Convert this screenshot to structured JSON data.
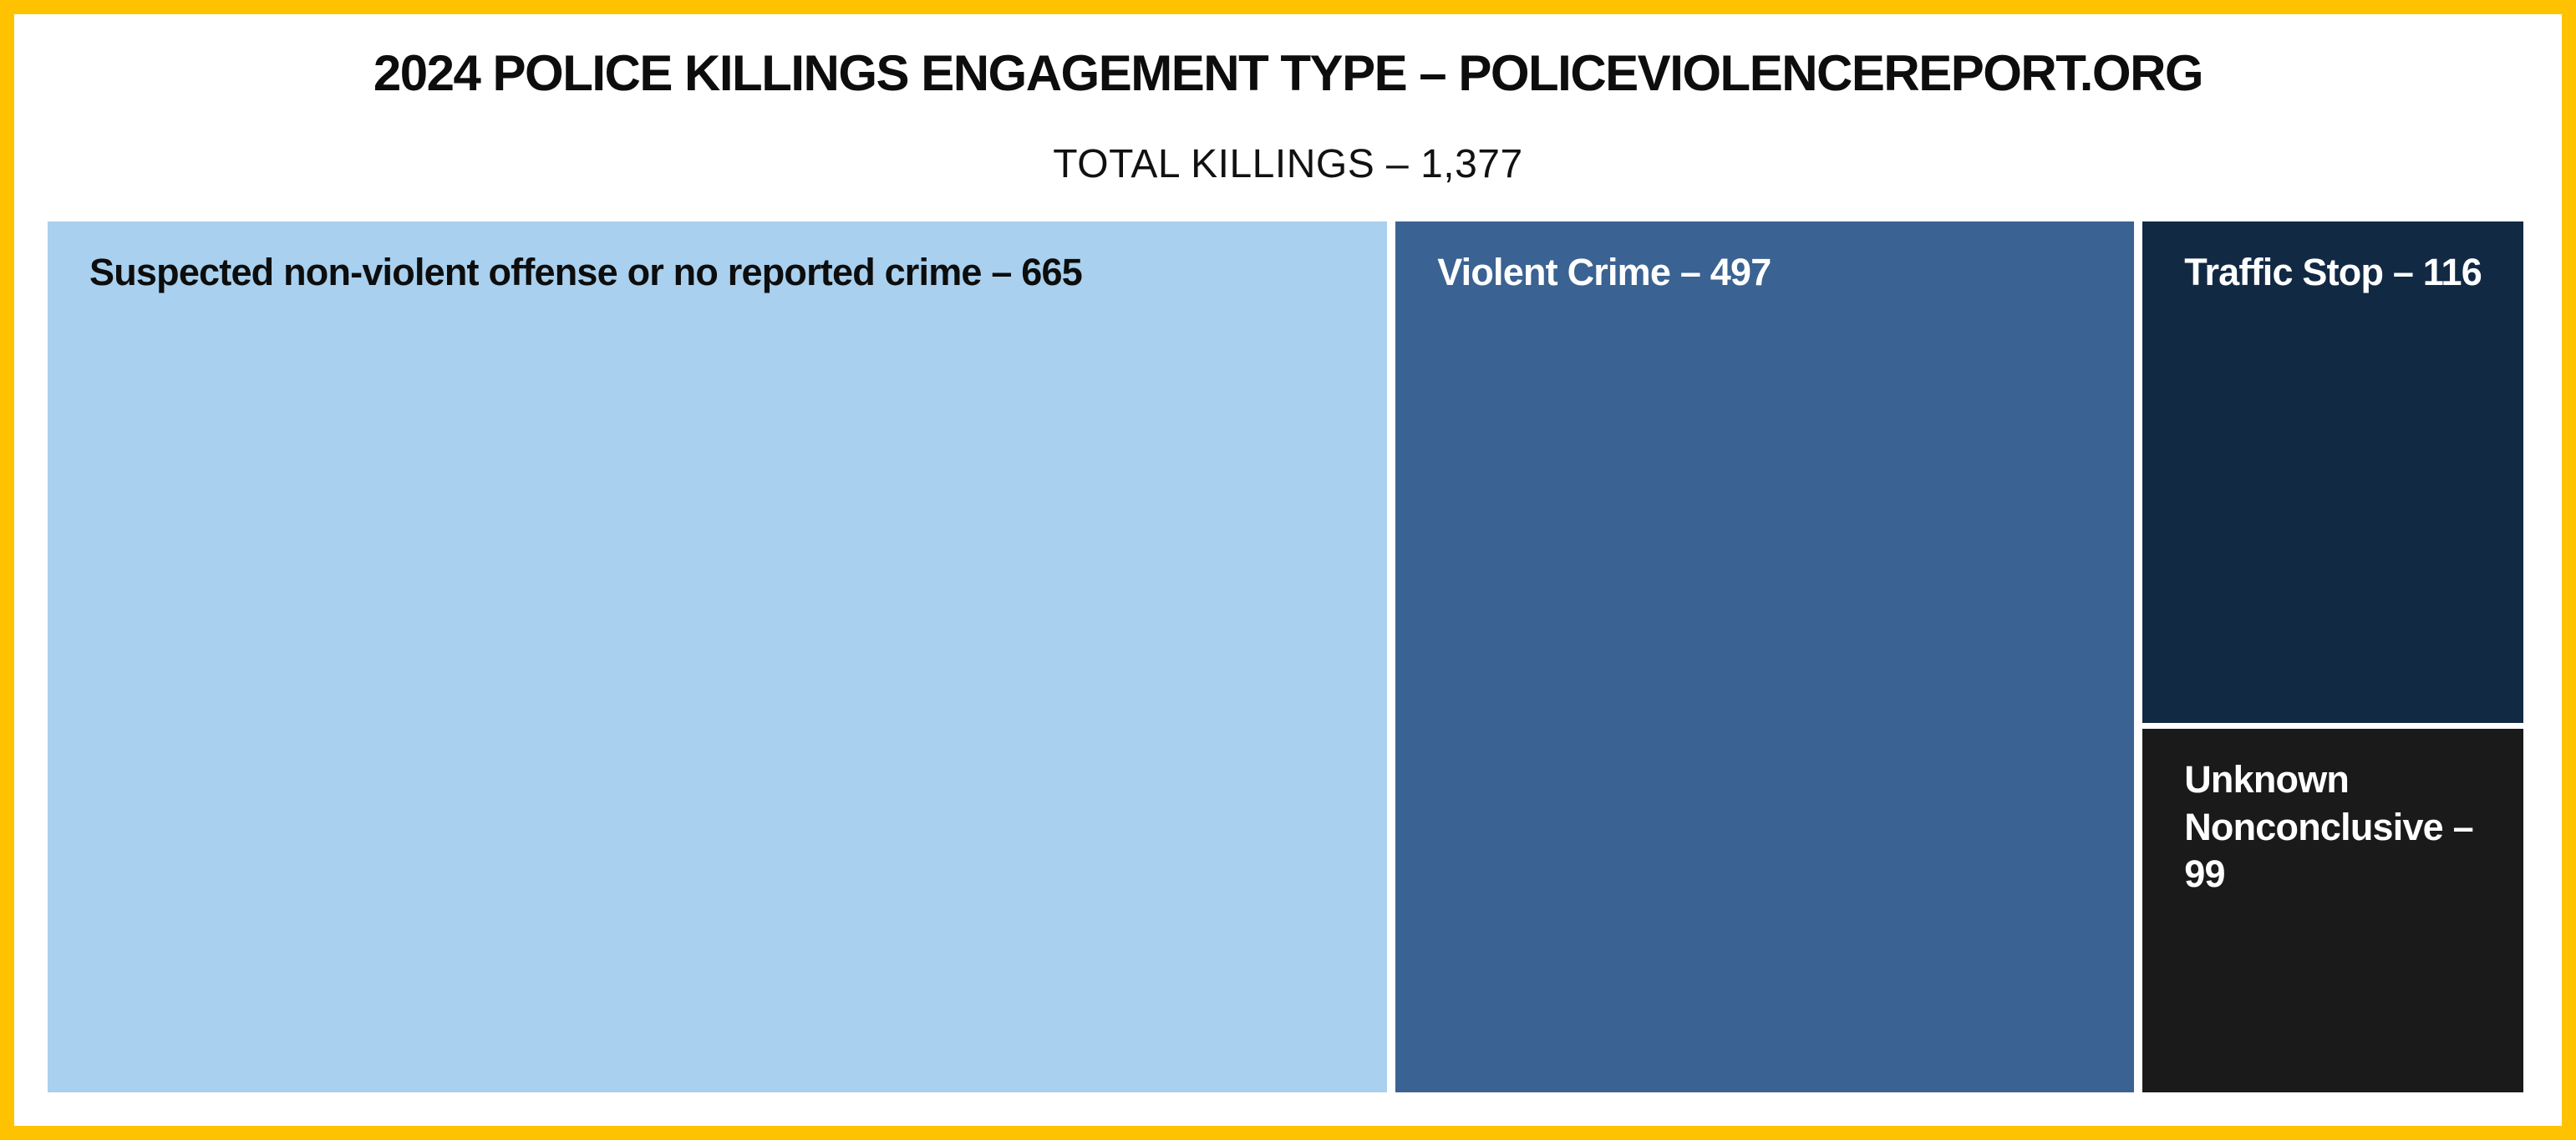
{
  "header": {
    "title": "2024 POLICE KILLINGS ENGAGEMENT TYPE – POLICEVIOLENCEREPORT.ORG",
    "subtitle": "TOTAL KILLINGS – 1,377"
  },
  "colors": {
    "frame_border": "#fec200",
    "background": "#ffffff",
    "title_text": "#0d0d0d",
    "cell_nonviolent": "#a9d0ee",
    "cell_violent": "#3a6292",
    "cell_traffic": "#122944",
    "cell_unknown": "#1a1a1a",
    "label_dark": "#0d0d0d",
    "label_light": "#ffffff"
  },
  "chart_data": {
    "type": "treemap",
    "title": "2024 POLICE KILLINGS ENGAGEMENT TYPE – POLICEVIOLENCEREPORT.ORG",
    "subtitle": "TOTAL KILLINGS – 1,377",
    "total_killings": 1377,
    "legend_position": "none",
    "items": [
      {
        "label": "Suspected non-violent offense or no reported crime",
        "value": 665,
        "display": "Suspected non-violent offense or no reported crime – 665",
        "color": "#a9d0ee",
        "text_color": "#0d0d0d"
      },
      {
        "label": "Violent Crime",
        "value": 497,
        "display": "Violent Crime – 497",
        "color": "#3a6292",
        "text_color": "#ffffff"
      },
      {
        "label": "Traffic Stop",
        "value": 116,
        "display": "Traffic Stop – 116",
        "color": "#122944",
        "text_color": "#ffffff"
      },
      {
        "label": "Unknown Nonconclusive",
        "value": 99,
        "display": [
          "Unknown",
          "Nonconclusive –",
          "99"
        ],
        "color": "#1a1a1a",
        "text_color": "#ffffff"
      }
    ]
  }
}
